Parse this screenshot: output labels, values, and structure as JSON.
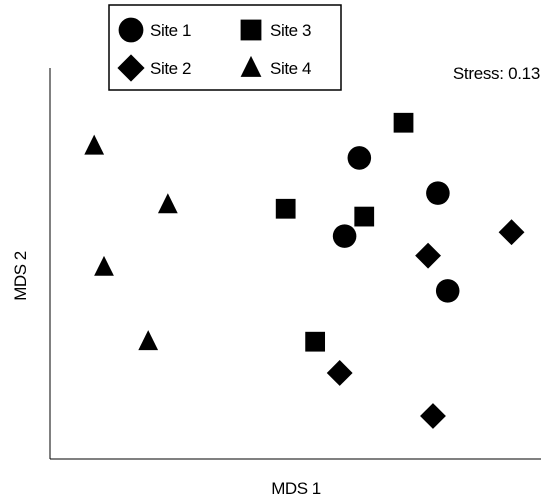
{
  "chart_data": {
    "type": "scatter",
    "xlabel": "MDS 1",
    "ylabel": "MDS 2",
    "annotation": "Stress: 0.13",
    "legend_position": "top-left",
    "legend_columns": 2,
    "xlim": [
      0,
      10
    ],
    "ylim": [
      0,
      10
    ],
    "axis_ticks": false,
    "grid": false,
    "color": "#000000",
    "series": [
      {
        "name": "Site 1",
        "marker": "circle",
        "points": [
          [
            6.3,
            7.7
          ],
          [
            7.9,
            6.8
          ],
          [
            6.0,
            5.7
          ],
          [
            8.1,
            4.3
          ]
        ]
      },
      {
        "name": "Site 2",
        "marker": "diamond",
        "points": [
          [
            9.4,
            5.8
          ],
          [
            7.7,
            5.2
          ],
          [
            5.9,
            2.2
          ],
          [
            7.8,
            1.1
          ]
        ]
      },
      {
        "name": "Site 3",
        "marker": "square",
        "points": [
          [
            7.2,
            8.6
          ],
          [
            4.8,
            6.4
          ],
          [
            6.4,
            6.2
          ],
          [
            5.4,
            3.0
          ]
        ]
      },
      {
        "name": "Site 4",
        "marker": "triangle",
        "points": [
          [
            0.9,
            8.0
          ],
          [
            2.4,
            6.5
          ],
          [
            1.1,
            4.9
          ],
          [
            2.0,
            3.0
          ]
        ]
      }
    ]
  }
}
